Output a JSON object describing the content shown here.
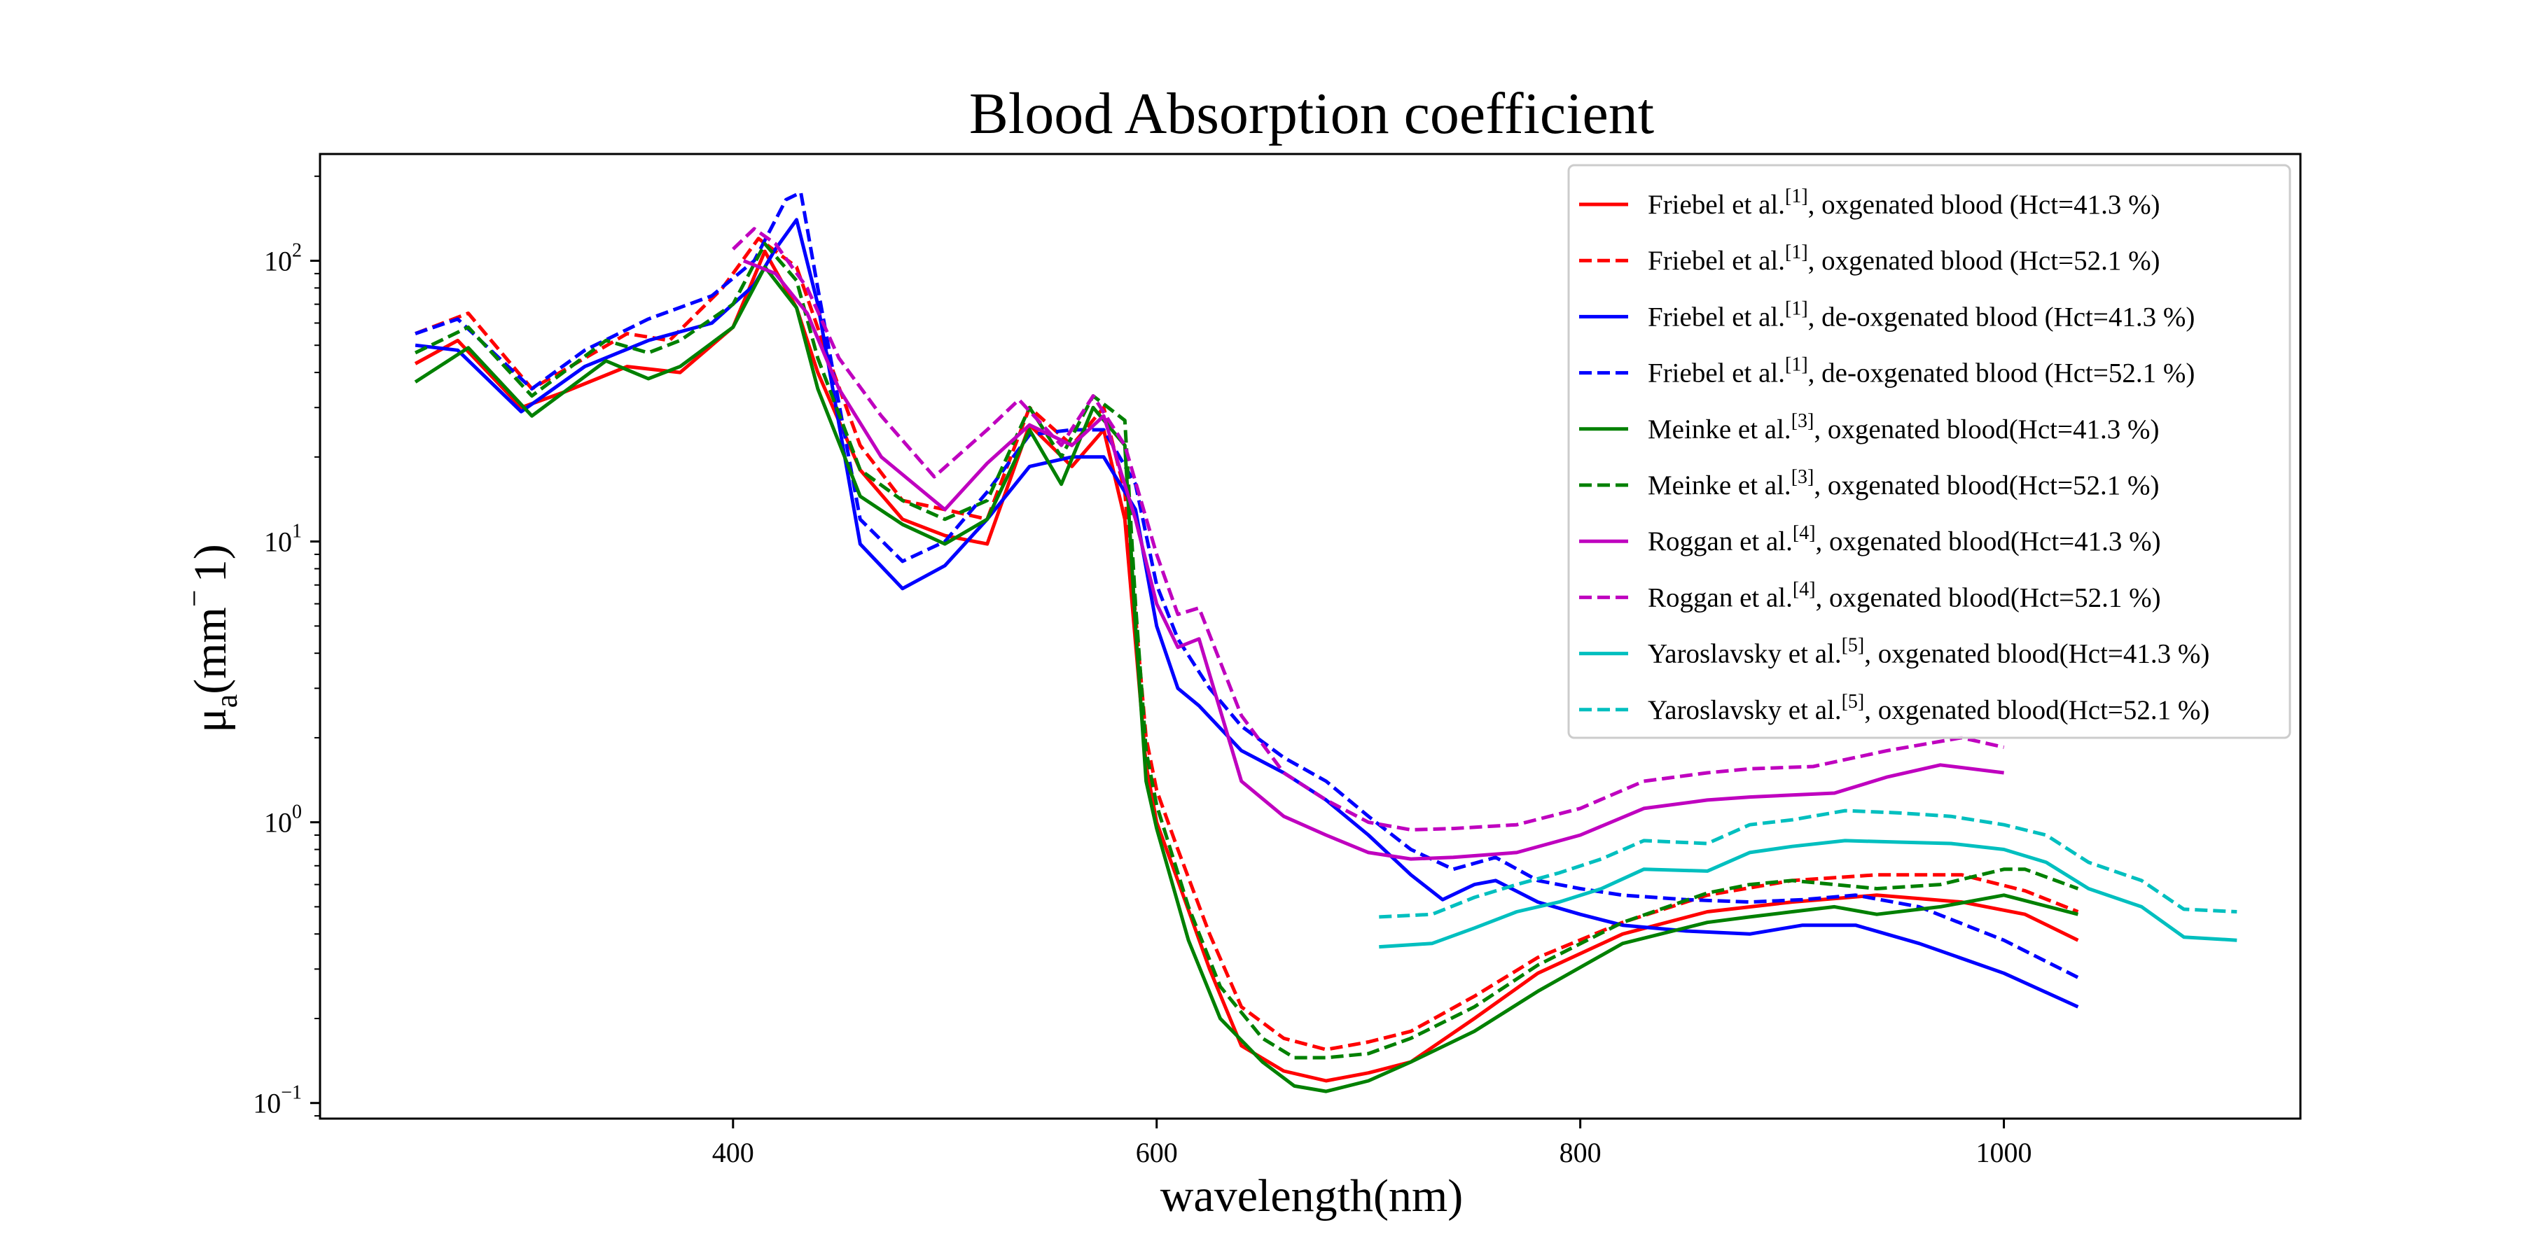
{
  "chart_data": {
    "type": "line",
    "title": "Blood Absorption coefficient",
    "xlabel": "wavelength(nm)",
    "ylabel": {
      "base": "μ",
      "sub": "a",
      "rest": "(mm",
      "sup": "−",
      "tail": "1)"
    },
    "x_scale": "linear",
    "y_scale": "log",
    "xlim": [
      205,
      1140
    ],
    "ylim": [
      0.088,
      240
    ],
    "x_ticks": [
      {
        "value": 400,
        "label": "400"
      },
      {
        "value": 600,
        "label": "600"
      },
      {
        "value": 800,
        "label": "800"
      },
      {
        "value": 1000,
        "label": "1000"
      }
    ],
    "y_ticks": [
      {
        "value": 0.1,
        "base": "10",
        "exp": "−1"
      },
      {
        "value": 1,
        "base": "10",
        "exp": "0"
      },
      {
        "value": 10,
        "base": "10",
        "exp": "1"
      },
      {
        "value": 100,
        "base": "10",
        "exp": "2"
      }
    ],
    "legend_position": "top-right",
    "grid": false,
    "series": [
      {
        "name": "Friebel et al.[1], oxgenated blood (Hct=41.3 %)",
        "legend": {
          "pre": "Friebel et al.",
          "sup": "[1]",
          "post": ", oxgenated blood (Hct=41.3 %)"
        },
        "color": "#ff0000",
        "dash": "solid",
        "x": [
          250,
          270,
          300,
          320,
          350,
          375,
          400,
          415,
          430,
          440,
          460,
          480,
          500,
          520,
          540,
          560,
          575,
          585,
          595,
          600,
          610,
          625,
          640,
          660,
          680,
          700,
          720,
          750,
          780,
          820,
          860,
          900,
          940,
          980,
          1010,
          1035
        ],
        "y": [
          43,
          52,
          30,
          34,
          42,
          40,
          58,
          108,
          68,
          40,
          18,
          12,
          10.5,
          9.8,
          26,
          18.5,
          25,
          12,
          1.6,
          1.0,
          0.62,
          0.3,
          0.16,
          0.13,
          0.12,
          0.128,
          0.14,
          0.2,
          0.29,
          0.4,
          0.48,
          0.52,
          0.55,
          0.52,
          0.47,
          0.38
        ]
      },
      {
        "name": "Friebel et al.[1], oxgenated blood (Hct=52.1 %)",
        "legend": {
          "pre": "Friebel et al.",
          "sup": "[1]",
          "post": ", oxgenated blood (Hct=52.1 %)"
        },
        "color": "#ff0000",
        "dash": "dashed",
        "x": [
          250,
          275,
          305,
          330,
          350,
          370,
          395,
          412,
          430,
          445,
          460,
          480,
          500,
          520,
          540,
          560,
          575,
          585,
          595,
          600,
          610,
          625,
          640,
          660,
          680,
          700,
          720,
          750,
          780,
          820,
          860,
          900,
          940,
          980,
          1010,
          1035
        ],
        "y": [
          55,
          65,
          35,
          45,
          55,
          52,
          80,
          120,
          95,
          45,
          22,
          14,
          13,
          12,
          30,
          22,
          30,
          15,
          2,
          1.3,
          0.8,
          0.4,
          0.22,
          0.17,
          0.155,
          0.165,
          0.18,
          0.24,
          0.33,
          0.44,
          0.55,
          0.62,
          0.65,
          0.65,
          0.57,
          0.48
        ]
      },
      {
        "name": "Friebel et al.[1], de-oxgenated blood (Hct=41.3 %)",
        "legend": {
          "pre": "Friebel et al.",
          "sup": "[1]",
          "post": ", de-oxgenated blood (Hct=41.3 %)"
        },
        "color": "#0000ff",
        "dash": "solid",
        "x": [
          250,
          270,
          300,
          330,
          360,
          390,
          410,
          420,
          430,
          440,
          460,
          480,
          500,
          520,
          540,
          560,
          575,
          590,
          600,
          610,
          620,
          640,
          660,
          680,
          700,
          720,
          735,
          750,
          760,
          780,
          800,
          820,
          850,
          880,
          905,
          930,
          960,
          1000,
          1035
        ],
        "y": [
          50,
          48,
          29,
          42,
          52,
          60,
          82,
          110,
          140,
          70,
          9.8,
          6.8,
          8.2,
          12,
          18.5,
          20,
          20,
          13,
          5,
          3,
          2.6,
          1.8,
          1.5,
          1.2,
          0.9,
          0.65,
          0.53,
          0.6,
          0.62,
          0.52,
          0.47,
          0.43,
          0.41,
          0.4,
          0.43,
          0.43,
          0.37,
          0.29,
          0.22
        ]
      },
      {
        "name": "Friebel et al.[1], de-oxgenated blood (Hct=52.1 %)",
        "legend": {
          "pre": "Friebel et al.",
          "sup": "[1]",
          "post": ", de-oxgenated blood (Hct=52.1 %)"
        },
        "color": "#0000ff",
        "dash": "dashed",
        "x": [
          250,
          270,
          305,
          330,
          360,
          390,
          410,
          425,
          432,
          440,
          460,
          480,
          500,
          520,
          540,
          560,
          575,
          590,
          600,
          610,
          625,
          640,
          660,
          680,
          700,
          720,
          740,
          760,
          780,
          800,
          820,
          850,
          880,
          905,
          930,
          960,
          1000,
          1035
        ],
        "y": [
          55,
          62,
          35,
          48,
          62,
          75,
          100,
          165,
          175,
          80,
          12,
          8.5,
          10,
          15,
          24,
          25,
          25,
          16,
          7,
          4.5,
          3,
          2.2,
          1.7,
          1.4,
          1.05,
          0.8,
          0.68,
          0.75,
          0.62,
          0.58,
          0.55,
          0.53,
          0.52,
          0.53,
          0.55,
          0.5,
          0.38,
          0.28
        ]
      },
      {
        "name": "Meinke et al.[3], oxgenated blood(Hct=41.3 %)",
        "legend": {
          "pre": "Meinke et al.",
          "sup": "[3]",
          "post": ", oxgenated blood(Hct=41.3 %)"
        },
        "color": "#008000",
        "dash": "solid",
        "x": [
          250,
          275,
          305,
          340,
          360,
          375,
          400,
          415,
          430,
          440,
          460,
          480,
          500,
          520,
          540,
          555,
          570,
          585,
          590,
          595,
          600,
          615,
          630,
          650,
          665,
          680,
          700,
          720,
          750,
          780,
          820,
          860,
          880,
          900,
          920,
          940,
          970,
          1000,
          1035
        ],
        "y": [
          37,
          49,
          28,
          44,
          38,
          42,
          58,
          95,
          68,
          35,
          14.5,
          11.5,
          9.8,
          12,
          25,
          16,
          30,
          22,
          5,
          1.4,
          0.95,
          0.38,
          0.2,
          0.14,
          0.115,
          0.11,
          0.12,
          0.14,
          0.18,
          0.25,
          0.37,
          0.44,
          0.46,
          0.48,
          0.5,
          0.47,
          0.5,
          0.55,
          0.47
        ]
      },
      {
        "name": "Meinke et al.[3], oxgenated blood(Hct=52.1 %)",
        "legend": {
          "pre": "Meinke et al.",
          "sup": "[3]",
          "post": ", oxgenated blood(Hct=52.1 %)"
        },
        "color": "#008000",
        "dash": "dashed",
        "x": [
          250,
          275,
          305,
          340,
          360,
          375,
          400,
          415,
          430,
          440,
          460,
          480,
          500,
          520,
          540,
          555,
          570,
          585,
          590,
          595,
          600,
          615,
          630,
          650,
          665,
          680,
          700,
          720,
          750,
          780,
          820,
          860,
          880,
          900,
          920,
          940,
          970,
          1000,
          1010,
          1035
        ],
        "y": [
          47,
          58,
          33,
          52,
          47,
          52,
          70,
          115,
          85,
          45,
          18,
          14,
          12,
          14,
          30,
          20,
          33,
          27,
          6,
          1.8,
          1.15,
          0.5,
          0.26,
          0.17,
          0.145,
          0.145,
          0.15,
          0.17,
          0.22,
          0.31,
          0.44,
          0.56,
          0.6,
          0.62,
          0.6,
          0.58,
          0.6,
          0.68,
          0.68,
          0.58
        ]
      },
      {
        "name": "Roggan et al.[4], oxgenated blood(Hct=41.3 %)",
        "legend": {
          "pre": "Roggan et al.",
          "sup": "[4]",
          "post": ", oxgenated blood(Hct=41.3 %)"
        },
        "color": "#bf00bf",
        "dash": "solid",
        "x": [
          405,
          420,
          435,
          450,
          470,
          500,
          520,
          540,
          560,
          575,
          590,
          600,
          610,
          620,
          640,
          660,
          680,
          700,
          720,
          740,
          770,
          800,
          830,
          860,
          880,
          900,
          920,
          945,
          970,
          1000
        ],
        "y": [
          100,
          90,
          65,
          35,
          20,
          13,
          19,
          26,
          22,
          28,
          12,
          6,
          4.2,
          4.5,
          1.4,
          1.05,
          0.9,
          0.78,
          0.74,
          0.75,
          0.78,
          0.9,
          1.12,
          1.2,
          1.23,
          1.25,
          1.27,
          1.45,
          1.6,
          1.5
        ]
      },
      {
        "name": "Roggan et al.[4], oxgenated blood(Hct=52.1 %)",
        "legend": {
          "pre": "Roggan et al.",
          "sup": "[4]",
          "post": ", oxgenated blood(Hct=52.1 %)"
        },
        "color": "#bf00bf",
        "dash": "dashed",
        "x": [
          400,
          410,
          420,
          435,
          450,
          470,
          495,
          520,
          535,
          555,
          570,
          585,
          600,
          610,
          620,
          640,
          660,
          680,
          700,
          720,
          740,
          770,
          800,
          830,
          860,
          880,
          910,
          945,
          980,
          1000
        ],
        "y": [
          110,
          130,
          115,
          80,
          45,
          28,
          17,
          25,
          32,
          22,
          33,
          22,
          9,
          5.5,
          5.8,
          2.4,
          1.5,
          1.2,
          1.0,
          0.94,
          0.95,
          0.98,
          1.12,
          1.4,
          1.5,
          1.55,
          1.58,
          1.8,
          2.0,
          1.85
        ]
      },
      {
        "name": "Yaroslavsky et al.[5], oxgenated blood(Hct=41.3 %)",
        "legend": {
          "pre": "Yaroslavsky et al.",
          "sup": "[5]",
          "post": ", oxgenated blood(Hct=41.3 %)"
        },
        "color": "#00bfbf",
        "dash": "solid",
        "x": [
          705,
          730,
          750,
          770,
          790,
          810,
          830,
          860,
          880,
          900,
          925,
          950,
          975,
          1000,
          1020,
          1040,
          1065,
          1085,
          1110
        ],
        "y": [
          0.36,
          0.37,
          0.42,
          0.48,
          0.52,
          0.58,
          0.68,
          0.67,
          0.78,
          0.82,
          0.86,
          0.85,
          0.84,
          0.8,
          0.72,
          0.58,
          0.5,
          0.39,
          0.38
        ]
      },
      {
        "name": "Yaroslavsky et al.[5], oxgenated blood(Hct=52.1 %)",
        "legend": {
          "pre": "Yaroslavsky et al.",
          "sup": "[5]",
          "post": ", oxgenated blood(Hct=52.1 %)"
        },
        "color": "#00bfbf",
        "dash": "dashed",
        "x": [
          705,
          730,
          750,
          770,
          790,
          810,
          830,
          860,
          880,
          900,
          925,
          950,
          975,
          1000,
          1020,
          1040,
          1065,
          1085,
          1110
        ],
        "y": [
          0.46,
          0.47,
          0.54,
          0.6,
          0.66,
          0.74,
          0.86,
          0.84,
          0.98,
          1.02,
          1.1,
          1.08,
          1.05,
          0.98,
          0.9,
          0.72,
          0.62,
          0.49,
          0.48
        ]
      }
    ]
  }
}
